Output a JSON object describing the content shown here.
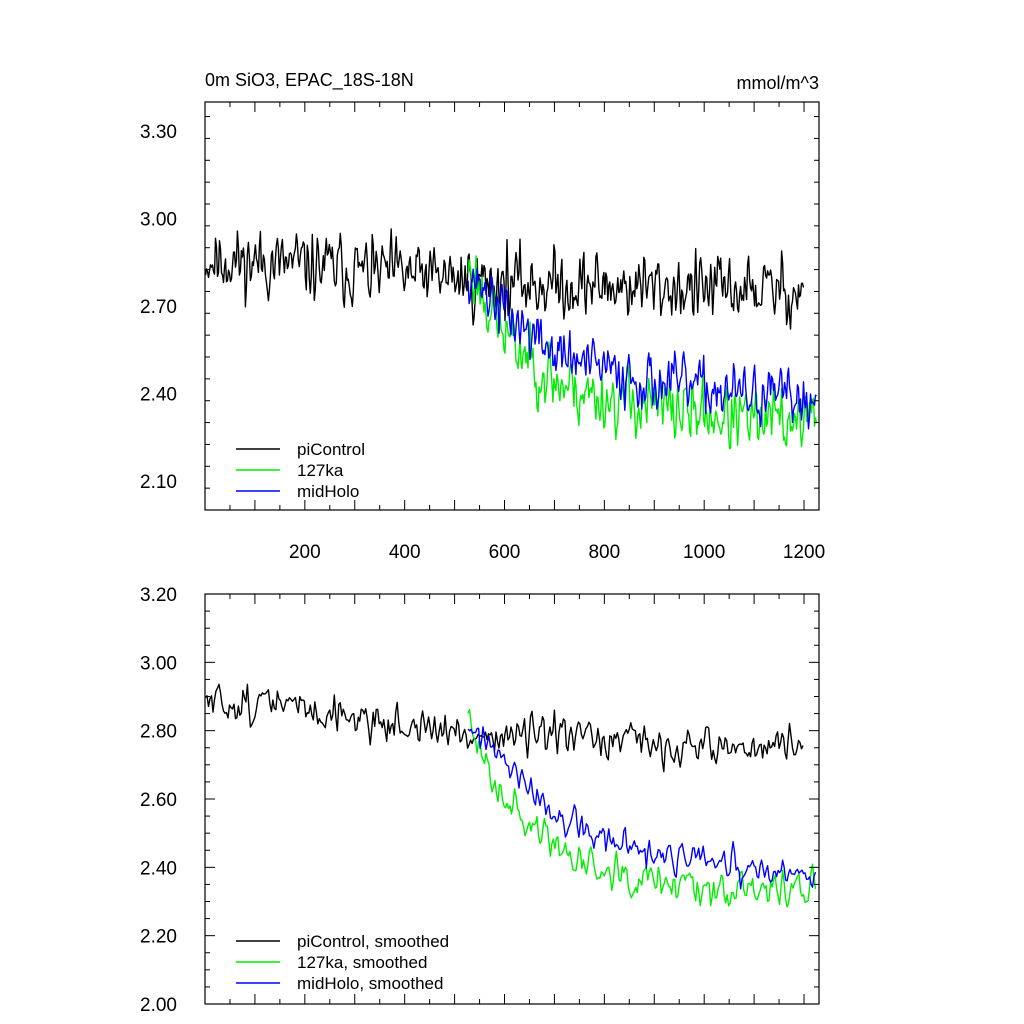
{
  "chart_data": [
    {
      "type": "line",
      "title_left": "0m SiO3, EPAC_18S-18N",
      "title_right": "mmol/m^3",
      "xlim": [
        0,
        1230
      ],
      "ylim": [
        2.0,
        3.4
      ],
      "xticks": [
        200,
        400,
        600,
        800,
        1000,
        1200
      ],
      "yticks": [
        2.1,
        2.4,
        2.7,
        3.0,
        3.3
      ],
      "ytick_labels": [
        "2.10",
        "2.40",
        "2.70",
        "3.00",
        "3.30"
      ],
      "xtick_labels": [
        "200",
        "400",
        "600",
        "800",
        "1000",
        "1200"
      ],
      "legend_position": "bottom-left",
      "series": [
        {
          "name": "piControl",
          "color": "#000000",
          "start": 1,
          "end": 1200,
          "step": 2,
          "seed": 11,
          "noise": 0.12,
          "anchors": [
            [
              1,
              2.86
            ],
            [
              200,
              2.84
            ],
            [
              400,
              2.81
            ],
            [
              600,
              2.78
            ],
            [
              800,
              2.77
            ],
            [
              1000,
              2.76
            ],
            [
              1200,
              2.75
            ]
          ]
        },
        {
          "name": "127ka",
          "color": "#00ee00",
          "start": 527,
          "end": 1225,
          "step": 2,
          "seed": 23,
          "noise": 0.12,
          "anchors": [
            [
              527,
              2.84
            ],
            [
              600,
              2.6
            ],
            [
              700,
              2.44
            ],
            [
              800,
              2.38
            ],
            [
              900,
              2.36
            ],
            [
              1000,
              2.33
            ],
            [
              1100,
              2.3
            ],
            [
              1225,
              2.32
            ]
          ]
        },
        {
          "name": "midHolo",
          "color": "#0000ff",
          "start": 527,
          "end": 1225,
          "step": 2,
          "seed": 37,
          "noise": 0.1,
          "anchors": [
            [
              527,
              2.82
            ],
            [
              600,
              2.68
            ],
            [
              700,
              2.54
            ],
            [
              800,
              2.48
            ],
            [
              900,
              2.44
            ],
            [
              1000,
              2.42
            ],
            [
              1100,
              2.39
            ],
            [
              1225,
              2.38
            ]
          ]
        }
      ]
    },
    {
      "type": "line",
      "xlim": [
        0,
        1230
      ],
      "ylim": [
        2.0,
        3.2
      ],
      "xticks": [
        200,
        400,
        600,
        800,
        1000,
        1200
      ],
      "yticks": [
        2.0,
        2.2,
        2.4,
        2.6,
        2.8,
        3.0,
        3.2
      ],
      "ytick_labels": [
        "2.00",
        "2.20",
        "2.40",
        "2.60",
        "2.80",
        "3.00",
        "3.20"
      ],
      "legend_position": "bottom-left",
      "series": [
        {
          "name": "piControl, smoothed",
          "color": "#000000",
          "start": 1,
          "end": 1200,
          "step": 3,
          "seed": 51,
          "noise": 0.06,
          "anchors": [
            [
              1,
              2.88
            ],
            [
              150,
              2.88
            ],
            [
              300,
              2.84
            ],
            [
              500,
              2.79
            ],
            [
              700,
              2.78
            ],
            [
              900,
              2.76
            ],
            [
              1100,
              2.75
            ],
            [
              1200,
              2.76
            ]
          ]
        },
        {
          "name": "127ka, smoothed",
          "color": "#00ee00",
          "start": 527,
          "end": 1225,
          "step": 3,
          "seed": 63,
          "noise": 0.06,
          "anchors": [
            [
              527,
              2.82
            ],
            [
              580,
              2.66
            ],
            [
              650,
              2.52
            ],
            [
              750,
              2.42
            ],
            [
              850,
              2.39
            ],
            [
              950,
              2.36
            ],
            [
              1100,
              2.33
            ],
            [
              1225,
              2.35
            ]
          ]
        },
        {
          "name": "midHolo, smoothed",
          "color": "#0000ff",
          "start": 527,
          "end": 1225,
          "step": 3,
          "seed": 77,
          "noise": 0.05,
          "anchors": [
            [
              527,
              2.82
            ],
            [
              600,
              2.7
            ],
            [
              700,
              2.55
            ],
            [
              800,
              2.48
            ],
            [
              900,
              2.43
            ],
            [
              1000,
              2.42
            ],
            [
              1100,
              2.38
            ],
            [
              1225,
              2.37
            ]
          ]
        }
      ]
    }
  ]
}
